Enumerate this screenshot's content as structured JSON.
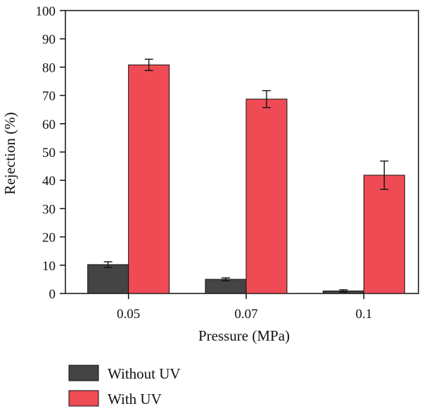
{
  "chart_data": {
    "type": "bar",
    "title": "",
    "xlabel": "Pressure (MPa)",
    "ylabel": "Rejection (%)",
    "categories": [
      "0.05",
      "0.07",
      "0.1"
    ],
    "ylim": [
      0,
      100
    ],
    "yticks": [
      0,
      10,
      20,
      30,
      40,
      50,
      60,
      70,
      80,
      90,
      100
    ],
    "grid": false,
    "legend_position": "bottom-left",
    "series": [
      {
        "name": "Without UV",
        "color": "#444444",
        "values": [
          10.2,
          5.0,
          0.9
        ],
        "errors": [
          1.0,
          0.5,
          0.4
        ]
      },
      {
        "name": "With UV",
        "color": "#ef4b55",
        "values": [
          80.8,
          68.7,
          41.8
        ],
        "errors": [
          2.0,
          3.0,
          5.0
        ]
      }
    ]
  }
}
